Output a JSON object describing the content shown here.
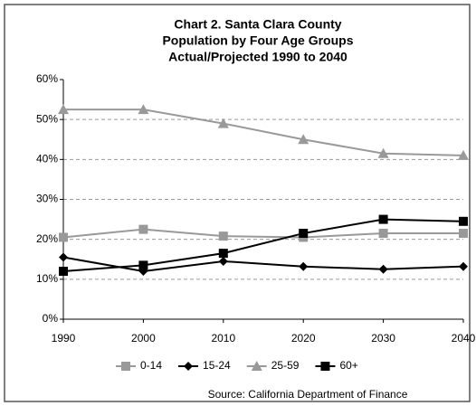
{
  "chart_data": {
    "type": "line",
    "title": [
      "Chart 2. Santa Clara County",
      "Population by Four Age Groups",
      "Actual/Projected 1990 to 2040"
    ],
    "categories": [
      "1990",
      "2000",
      "2010",
      "2020",
      "2030",
      "2040"
    ],
    "series": [
      {
        "name": "0-14",
        "color": "#999999",
        "marker": "square",
        "values": [
          20.5,
          22.5,
          20.8,
          20.5,
          21.5,
          21.5
        ]
      },
      {
        "name": "15-24",
        "color": "#000000",
        "marker": "diamond",
        "values": [
          15.5,
          12,
          14.5,
          13.2,
          12.5,
          13.2
        ]
      },
      {
        "name": "25-59",
        "color": "#999999",
        "marker": "triangle",
        "values": [
          52.5,
          52.5,
          49,
          45,
          41.5,
          41
        ]
      },
      {
        "name": "60+",
        "color": "#000000",
        "marker": "square",
        "values": [
          12,
          13.5,
          16.5,
          21.5,
          25,
          24.5
        ]
      }
    ],
    "ylim": [
      0,
      60
    ],
    "yticks": [
      {
        "value": 0,
        "label": "0%"
      },
      {
        "value": 10,
        "label": "10%"
      },
      {
        "value": 20,
        "label": "20%"
      },
      {
        "value": 30,
        "label": "30%"
      },
      {
        "value": 40,
        "label": "40%"
      },
      {
        "value": 50,
        "label": "50%"
      },
      {
        "value": 60,
        "label": "60%"
      }
    ],
    "grid": true,
    "legend": "bottom",
    "source": "Source: California Department of Finance"
  }
}
